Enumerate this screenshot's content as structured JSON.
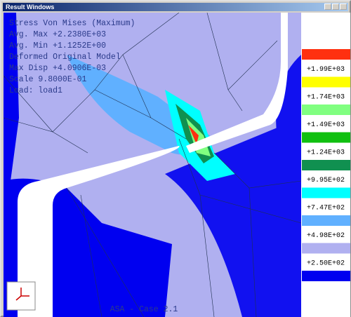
{
  "window": {
    "title": "Result Windows"
  },
  "info": [
    "Stress Von Mises (Maximum)",
    "Avg. Max  +2.2380E+03",
    "Avg. Min  +1.1252E+00",
    "Deformed Original Model",
    "Max Disp  +4.0906E-03",
    "Scale  9.8000E-01",
    "Load: load1"
  ],
  "footer": "ASA - Case 2.1",
  "legend": {
    "colors": [
      "#ff3010",
      "#ffff00",
      "#80ff80",
      "#10c010",
      "#109050",
      "#00ffff",
      "#60b0ff",
      "#b0b0f0",
      "#0000f0"
    ],
    "labels": [
      "+1.99E+03",
      "+1.74E+03",
      "+1.49E+03",
      "+1.24E+03",
      "+9.95E+02",
      "+7.47E+02",
      "+4.98E+02",
      "+2.50E+02"
    ]
  }
}
